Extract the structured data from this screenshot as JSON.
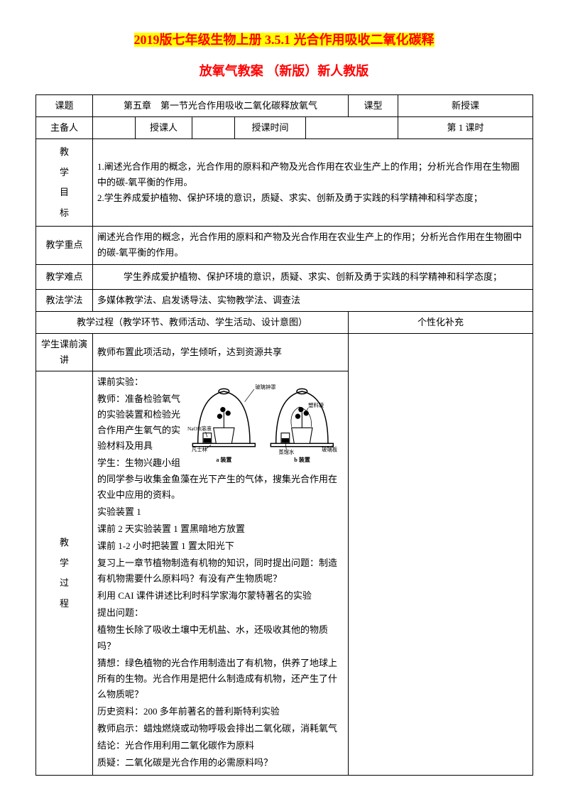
{
  "titles": {
    "line1_prefix": "2019",
    "line1_rest": "版七年级生物上册 3.5.1 光合作用吸收二氧化碳释",
    "line2": "放氧气教案 （新版）新人教版"
  },
  "header_row1": {
    "label_topic": "课题",
    "topic": "第五章　第一节光合作用吸收二氧化碳释放氧气",
    "label_type": "课型",
    "type": "新授课"
  },
  "header_row2": {
    "label_author": "主备人",
    "author": "",
    "label_teacher": "授课人",
    "teacher": "",
    "label_time": "授课时间",
    "time": "",
    "period": "第 1 课时"
  },
  "objectives": {
    "label": [
      "教",
      "学",
      "目",
      "标"
    ],
    "text": "1.阐述光合作用的概念，光合作用的原料和产物及光合作用在农业生产上的作用；分析光合作用在生物圈中的碳-氧平衡的作用。\n2.学生养成爱护植物、保护环境的意识，质疑、求实、创新及勇于实践的科学精神和科学态度；"
  },
  "key_point": {
    "label": "教学重点",
    "text": "阐述光合作用的概念，光合作用的原料和产物及光合作用在农业生产上的作用；分析光合作用在生物圈中的碳-氧平衡的作用。"
  },
  "difficulty": {
    "label": "教学难点",
    "text": "学生养成爱护植物、保护环境的意识，质疑、求实、创新及勇于实践的科学精神和科学态度；"
  },
  "methods": {
    "label": "教法学法",
    "text": "多媒体教学法、启发诱导法、实物教学法、调查法"
  },
  "process_header": {
    "left": "教学过程（教学环节、教师活动、学生活动、设计意图）",
    "right": "个性化补充"
  },
  "pre_lecture": {
    "label": "学生课前演讲",
    "text": "教师布置此项活动，学生倾听，达到资源共享"
  },
  "process": {
    "label": [
      "教",
      "学",
      "过",
      "程"
    ],
    "lines": [
      "课前实验：",
      "教师：准备检验氧气的实验装置和检验光合作用产生氧气的实验材料及用具",
      "学生：生物兴趣小组的同学参与收集金鱼藻在光下产生的气体，搜集光合作用在农业中应用的资料。",
      "实验装置 1",
      "课前 2 天实验装置 1 置黑暗地方放置",
      "课前 1-2 小时把装置 1 置太阳光下",
      "复习上一章节植物制造有机物的知识，同时提出问题：制造有机物需要什么原料吗？有没有产生物质呢？",
      "利用 CAI 课件讲述比利时科学家海尔蒙特著名的实验",
      "提出问题：",
      "植物生长除了吸收土壤中无机盐、水，还吸收其他的物质吗？",
      "猜想：绿色植物的光合作用制造出了有机物，供养了地球上所有的生物。光合作用是把什么制造成有机物，还产生了什么物质呢？",
      "历史资料：200 多年前著名的普利斯特利实验",
      "教师启示：蜡烛燃烧或动物呼吸会排出二氧化碳，消耗氧气",
      "结论：光合作用利用二氧化碳作为原料",
      "质疑：二氧化碳是光合作用的必需原料吗？"
    ]
  },
  "diagram": {
    "labels": {
      "naoh": "NaOH溶液",
      "vaseline": "凡士林",
      "glass_bell": "玻璃钟罩",
      "plastic_bag": "塑料袋",
      "water": "蒸馏水",
      "glass_plate": "玻璃板",
      "a": "a 装置",
      "b": "b 装置"
    },
    "colors": {
      "stroke": "#000000",
      "fill": "#ffffff"
    }
  }
}
